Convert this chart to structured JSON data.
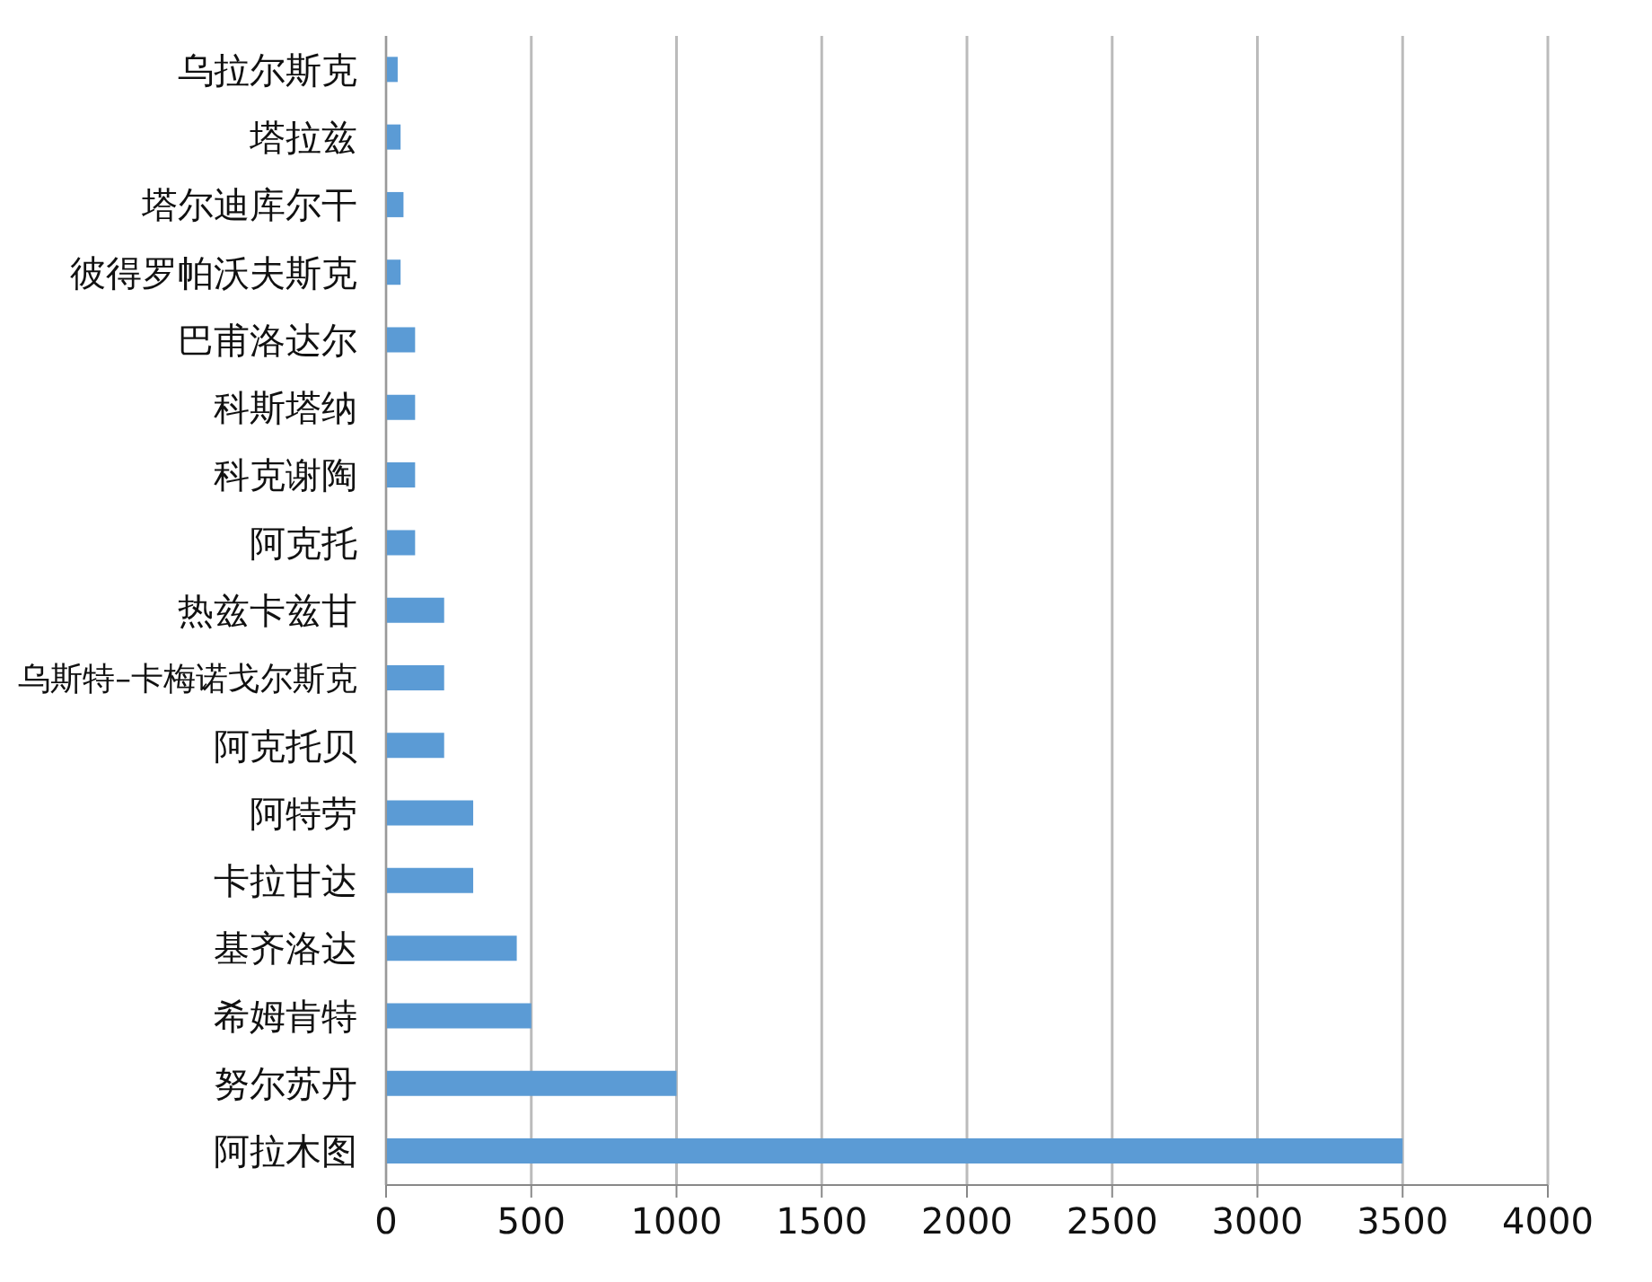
{
  "chart_data": {
    "type": "bar",
    "orientation": "horizontal",
    "categories": [
      "乌拉尔斯克",
      "塔拉兹",
      "塔尔迪库尔干",
      "彼得罗帕沃夫斯克",
      "巴甫洛达尔",
      "科斯塔纳",
      "科克谢陶",
      "阿克托",
      "热兹卡兹甘",
      "乌斯特–卡梅诺戈尔斯克",
      "阿克托贝",
      "阿特劳",
      "卡拉甘达",
      "基齐洛达",
      "希姆肯特",
      "努尔苏丹",
      "阿拉木图"
    ],
    "values": [
      40,
      50,
      60,
      50,
      100,
      100,
      100,
      100,
      200,
      200,
      200,
      300,
      300,
      450,
      500,
      1000,
      3500
    ],
    "color": "#5b9bd5",
    "xlim": [
      0,
      4000
    ],
    "xticks": [
      0,
      500,
      1000,
      1500,
      2000,
      2500,
      3000,
      3500,
      4000
    ],
    "grid": "x"
  }
}
